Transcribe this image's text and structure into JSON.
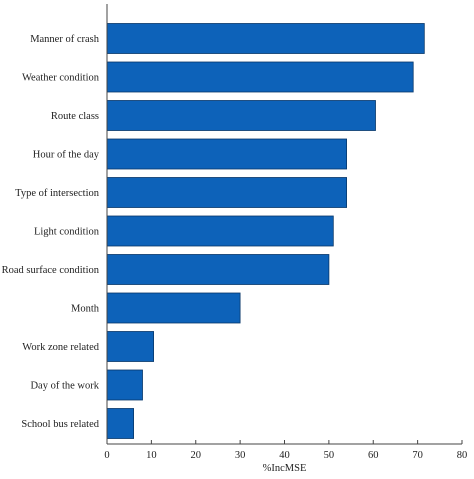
{
  "chart_data": {
    "type": "bar",
    "orientation": "horizontal",
    "title": "",
    "xlabel": "%IncMSE",
    "ylabel": "",
    "xlim": [
      0,
      80
    ],
    "xticks": [
      0,
      10,
      20,
      30,
      40,
      50,
      60,
      70,
      80
    ],
    "grid": false,
    "bar_color": "#0d62b9",
    "bar_edge_color": "#08376a",
    "categories": [
      "Manner of crash",
      "Weather condition",
      "Route class",
      "Hour of the day",
      "Type of intersection",
      "Light condition",
      "Road surface condition",
      "Month",
      "Work zone related",
      "Day of the work",
      "School bus related"
    ],
    "values": [
      71.5,
      69,
      60.5,
      54,
      54,
      51,
      50,
      30,
      10.5,
      8,
      6
    ]
  }
}
